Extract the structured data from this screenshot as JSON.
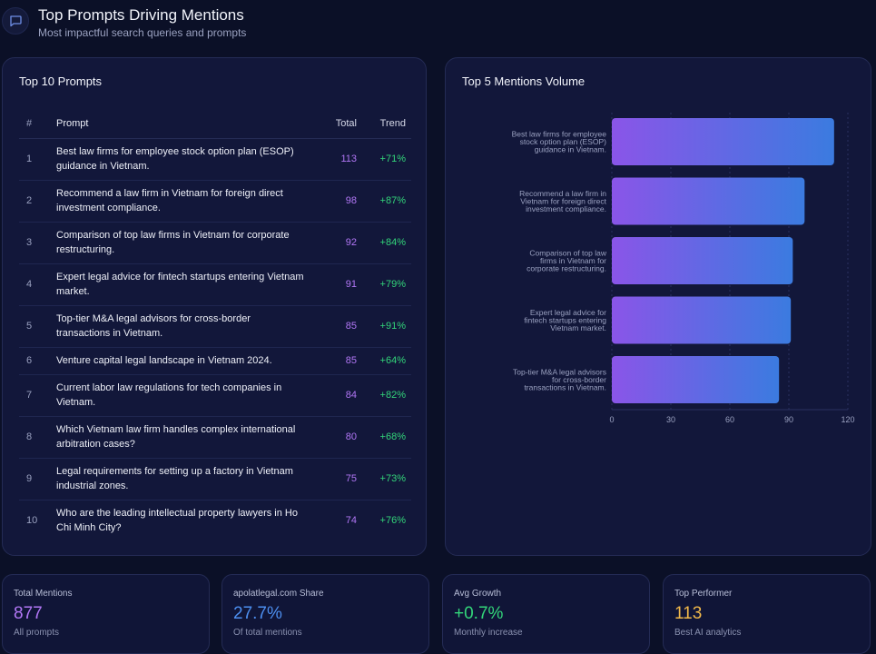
{
  "header": {
    "icon": "chat-icon",
    "title": "Top Prompts Driving Mentions",
    "subtitle": "Most impactful search queries and prompts"
  },
  "table_panel": {
    "title": "Top 10 Prompts",
    "columns": [
      "#",
      "Prompt",
      "Total",
      "Trend"
    ],
    "rows": [
      {
        "num": "1",
        "prompt": "Best law firms for employee stock option plan (ESOP) guidance in Vietnam.",
        "total": "113",
        "trend": "+71%"
      },
      {
        "num": "2",
        "prompt": "Recommend a law firm in Vietnam for foreign direct investment compliance.",
        "total": "98",
        "trend": "+87%"
      },
      {
        "num": "3",
        "prompt": "Comparison of top law firms in Vietnam for corporate restructuring.",
        "total": "92",
        "trend": "+84%"
      },
      {
        "num": "4",
        "prompt": "Expert legal advice for fintech startups entering Vietnam market.",
        "total": "91",
        "trend": "+79%"
      },
      {
        "num": "5",
        "prompt": "Top-tier M&A legal advisors for cross-border transactions in Vietnam.",
        "total": "85",
        "trend": "+91%"
      },
      {
        "num": "6",
        "prompt": "Venture capital legal landscape in Vietnam 2024.",
        "total": "85",
        "trend": "+64%"
      },
      {
        "num": "7",
        "prompt": "Current labor law regulations for tech companies in Vietnam.",
        "total": "84",
        "trend": "+82%"
      },
      {
        "num": "8",
        "prompt": "Which Vietnam law firm handles complex international arbitration cases?",
        "total": "80",
        "trend": "+68%"
      },
      {
        "num": "9",
        "prompt": "Legal requirements for setting up a factory in Vietnam industrial zones.",
        "total": "75",
        "trend": "+73%"
      },
      {
        "num": "10",
        "prompt": "Who are the leading intellectual property lawyers in Ho Chi Minh City?",
        "total": "74",
        "trend": "+76%"
      }
    ]
  },
  "chart_panel": {
    "title": "Top 5 Mentions Volume"
  },
  "chart_data": {
    "type": "bar",
    "orientation": "horizontal",
    "categories": [
      [
        "Best law firms for employee",
        "stock option plan (ESOP)",
        "guidance in Vietnam."
      ],
      [
        "Recommend a law firm in",
        "Vietnam for foreign direct",
        "investment compliance."
      ],
      [
        "Comparison of top law",
        "firms in Vietnam for",
        "corporate restructuring."
      ],
      [
        "Expert legal advice for",
        "fintech startups entering",
        "Vietnam market."
      ],
      [
        "Top-tier M&A legal advisors",
        "for cross-border",
        "transactions in Vietnam."
      ]
    ],
    "values": [
      113,
      98,
      92,
      91,
      85
    ],
    "xlim": [
      0,
      120
    ],
    "xticks": [
      "0",
      "30",
      "60",
      "90",
      "120"
    ],
    "tick_values": [
      0,
      30,
      60,
      90,
      120
    ],
    "grid": true,
    "bar_gradient": [
      "#8a55e8",
      "#3b7be0"
    ]
  },
  "cards": [
    {
      "label": "Total Mentions",
      "value": "877",
      "sub": "All prompts",
      "color": "#b277f6"
    },
    {
      "label": "apolatlegal.com Share",
      "value": "27.7%",
      "sub": "Of total mentions",
      "color": "#4d8ff0"
    },
    {
      "label": "Avg Growth",
      "value": "+0.7%",
      "sub": "Monthly increase",
      "color": "#33d67a"
    },
    {
      "label": "Top Performer",
      "value": "113",
      "sub": "Best AI analytics",
      "color": "#f2b94a"
    }
  ]
}
